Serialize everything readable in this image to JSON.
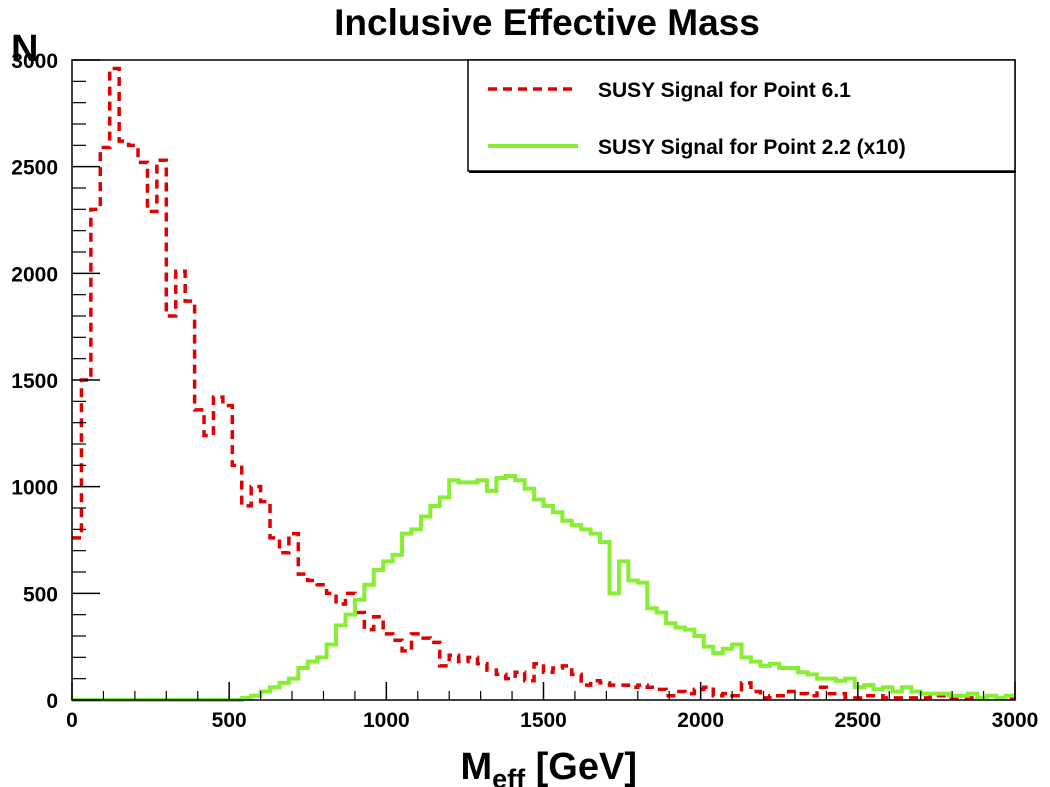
{
  "chart_data": {
    "type": "line",
    "subtype": "step-histogram",
    "title": "Inclusive Effective Mass",
    "ylabel": "N",
    "xlabel_main": "M",
    "xlabel_sub": "eff",
    "xlabel_unit": "[GeV]",
    "xlim": [
      0,
      3000
    ],
    "ylim": [
      0,
      3000
    ],
    "bin_width": 30,
    "grid": false,
    "legend_position": "top-right",
    "x_ticks": [
      0,
      500,
      1000,
      1500,
      2000,
      2500,
      3000
    ],
    "y_ticks": [
      0,
      500,
      1000,
      1500,
      2000,
      2500,
      3000
    ],
    "series": [
      {
        "name": "SUSY Signal for Point 6.1",
        "color": "#e00000",
        "style": "dashed",
        "values": [
          760,
          1500,
          2300,
          2590,
          2960,
          2620,
          2600,
          2520,
          2290,
          2530,
          1800,
          2010,
          1870,
          1360,
          1240,
          1420,
          1380,
          1100,
          910,
          1000,
          930,
          760,
          690,
          780,
          590,
          560,
          540,
          500,
          450,
          500,
          410,
          330,
          390,
          310,
          280,
          230,
          310,
          290,
          270,
          160,
          210,
          180,
          200,
          170,
          140,
          120,
          100,
          130,
          90,
          170,
          130,
          150,
          160,
          120,
          70,
          90,
          80,
          70,
          70,
          60,
          70,
          60,
          50,
          20,
          40,
          30,
          50,
          60,
          20,
          30,
          20,
          80,
          40,
          10,
          20,
          20,
          40,
          30,
          20,
          60,
          30,
          30,
          10,
          10,
          20,
          20,
          10,
          10,
          10,
          10,
          10,
          20,
          20,
          10,
          10,
          10,
          10,
          10,
          10,
          10
        ]
      },
      {
        "name": "SUSY Signal for Point 2.2 (x10)",
        "color": "#88ee33",
        "style": "solid",
        "values": [
          0,
          0,
          0,
          0,
          0,
          0,
          0,
          0,
          0,
          0,
          0,
          0,
          0,
          0,
          0,
          0,
          0,
          0,
          10,
          20,
          40,
          60,
          80,
          100,
          150,
          180,
          200,
          260,
          350,
          400,
          470,
          540,
          610,
          650,
          680,
          780,
          800,
          860,
          910,
          950,
          1030,
          1020,
          1020,
          1030,
          980,
          1040,
          1050,
          1030,
          990,
          940,
          910,
          880,
          840,
          820,
          800,
          780,
          740,
          500,
          650,
          560,
          550,
          430,
          410,
          360,
          340,
          330,
          300,
          250,
          220,
          240,
          260,
          200,
          180,
          160,
          170,
          150,
          150,
          130,
          120,
          100,
          100,
          90,
          100,
          60,
          70,
          50,
          60,
          40,
          60,
          40,
          30,
          30,
          30,
          20,
          20,
          30,
          10,
          20,
          10,
          20
        ]
      }
    ]
  }
}
